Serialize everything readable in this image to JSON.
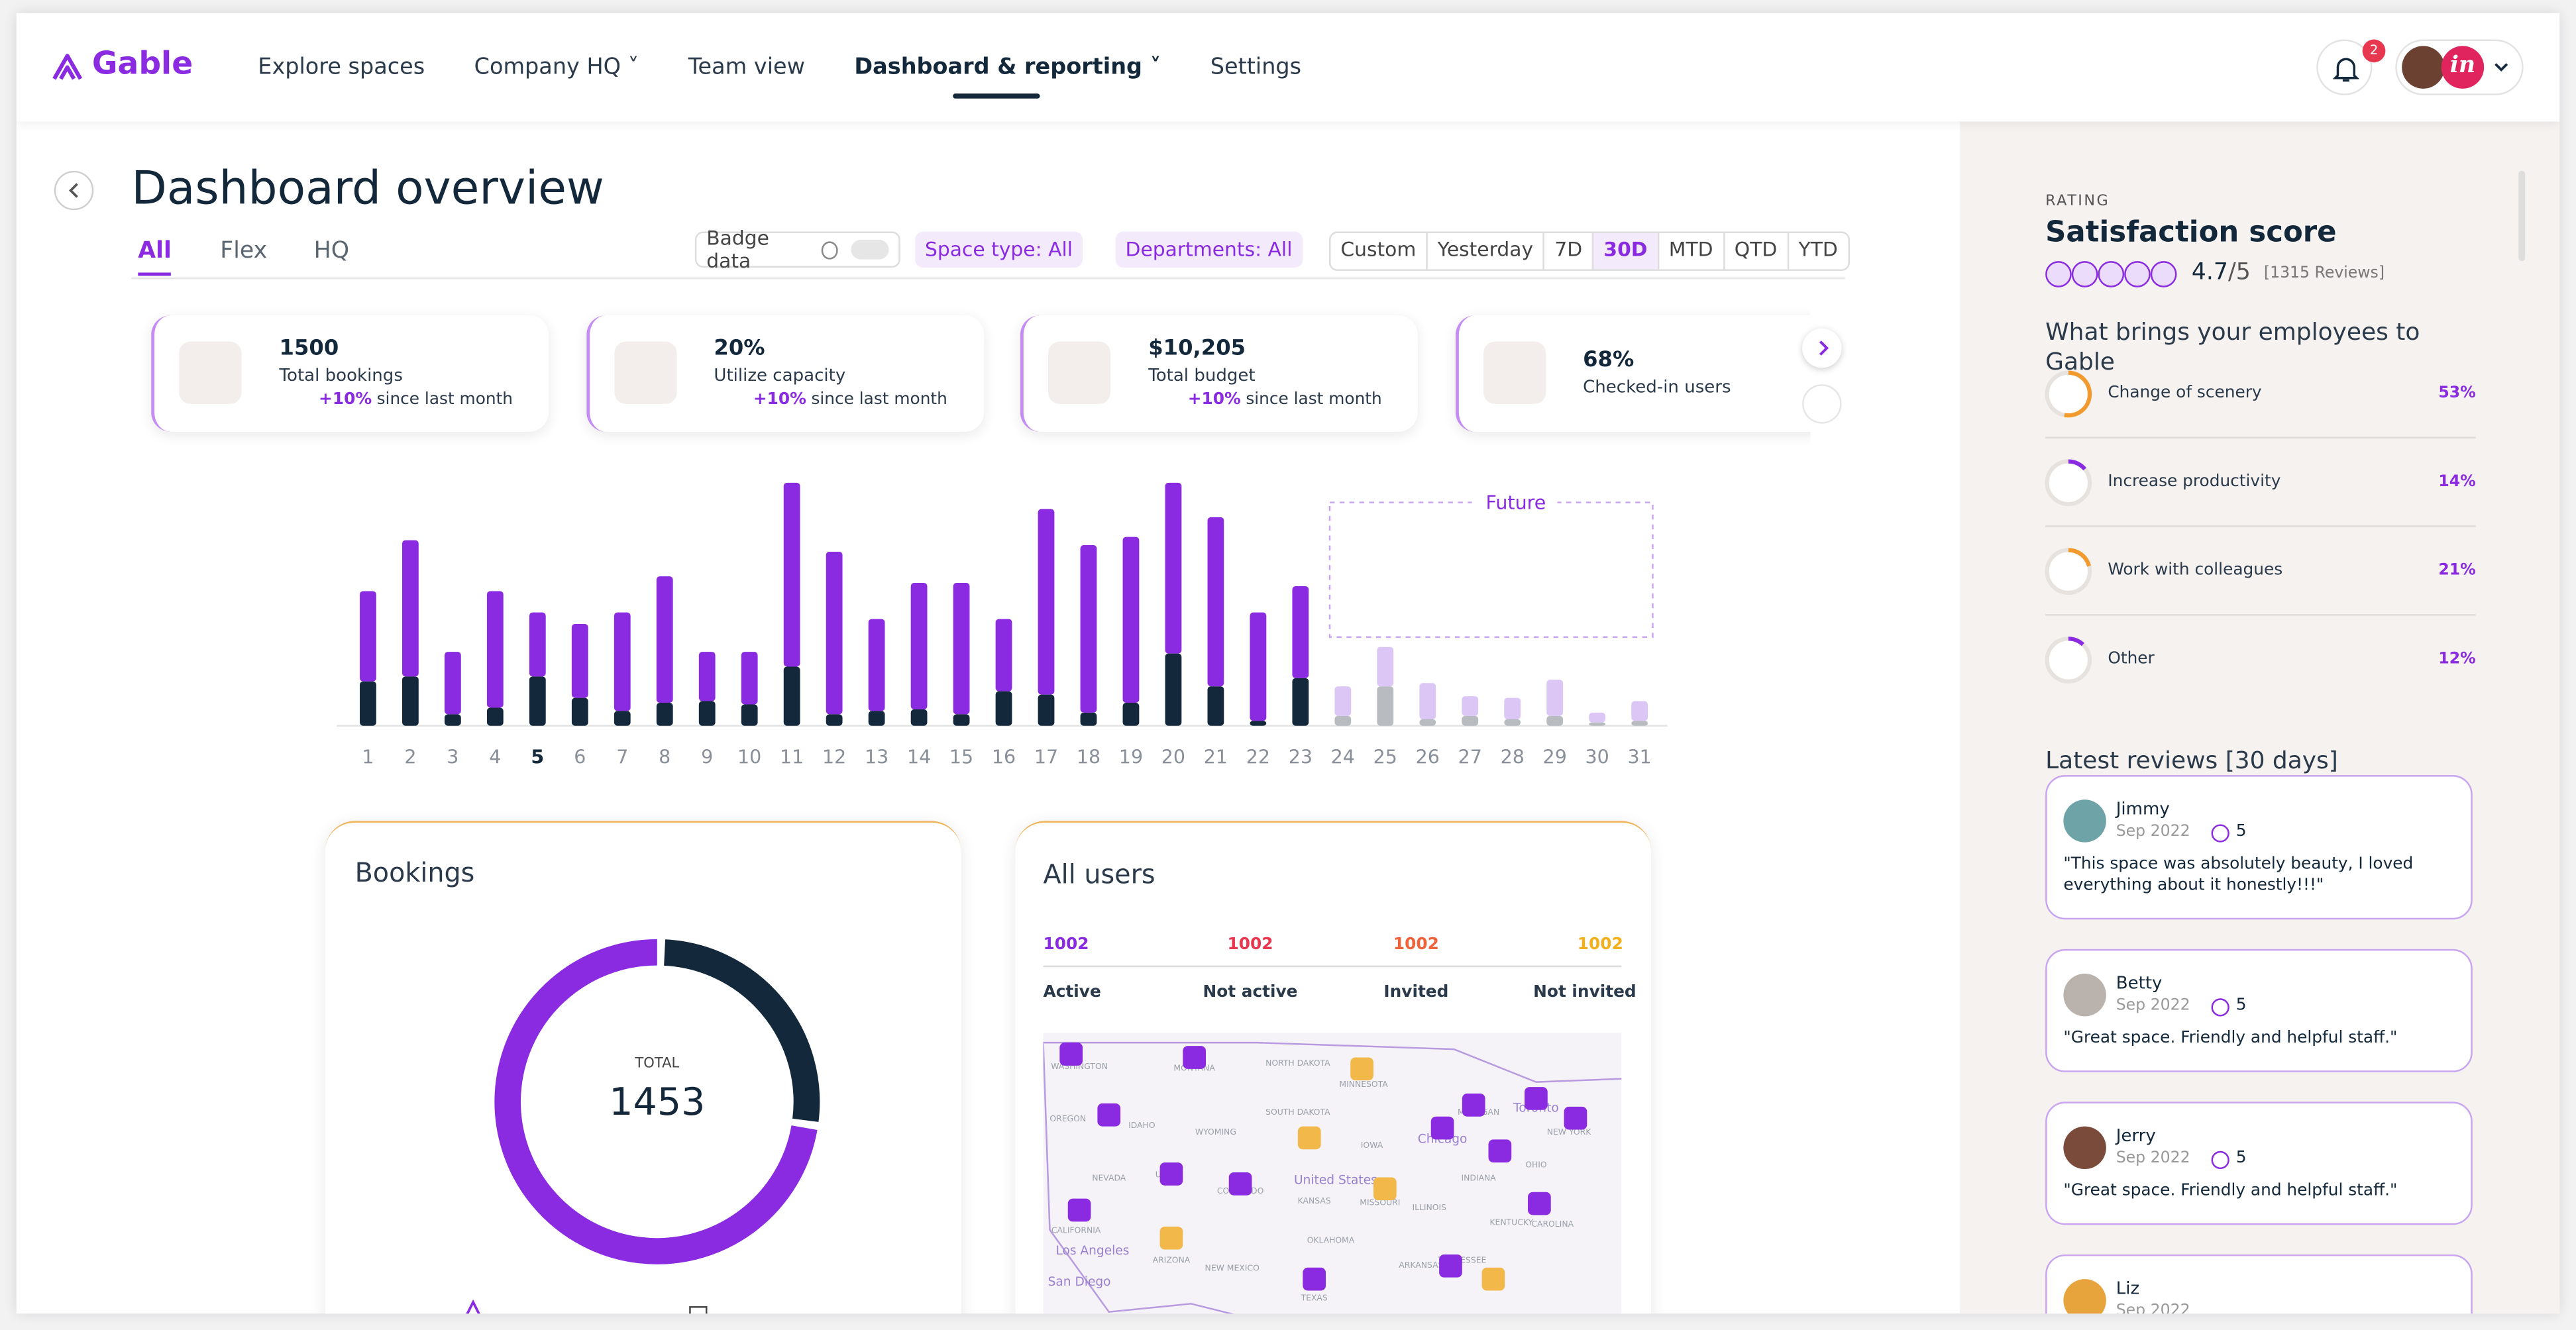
{
  "header": {
    "logo": "Gable",
    "nav": [
      "Explore spaces",
      "Company HQ",
      "Team view",
      "Dashboard & reporting",
      "Settings"
    ],
    "dropdown_nav": [
      1,
      3
    ],
    "active_nav": 3,
    "notifications": "2"
  },
  "page": {
    "title": "Dashboard overview",
    "tabs": [
      "All",
      "Flex",
      "HQ"
    ],
    "active_tab": 0,
    "filters": {
      "badge": "Badge data",
      "space_type": "Space type: All",
      "departments": "Departments: All",
      "ranges": [
        "Custom",
        "Yesterday",
        "7D",
        "30D",
        "MTD",
        "QTD",
        "YTD"
      ],
      "active_range": 3
    }
  },
  "kpis": [
    {
      "value": "1500",
      "label": "Total bookings",
      "change": "+10%",
      "note": "since last month"
    },
    {
      "value": "20%",
      "label": "Utilize capacity",
      "change": "+10%",
      "note": "since last month"
    },
    {
      "value": "$10,205",
      "label": "Total budget",
      "change": "+10%",
      "note": "since last month"
    },
    {
      "value": "68%",
      "label": "Checked-in users"
    }
  ],
  "chart_data": [
    {
      "type": "bar",
      "stacked": true,
      "annotation": "Future",
      "highlight_index": 4,
      "categories": [
        "1",
        "2",
        "3",
        "4",
        "5",
        "6",
        "7",
        "8",
        "9",
        "10",
        "11",
        "12",
        "13",
        "14",
        "15",
        "16",
        "17",
        "18",
        "19",
        "20",
        "21",
        "22",
        "23",
        "24",
        "25",
        "26",
        "27",
        "28",
        "29",
        "30",
        "31"
      ],
      "series": [
        {
          "color": "#13283a",
          "values": [
            27,
            30,
            7,
            11,
            30,
            17,
            9,
            14,
            15,
            13,
            36,
            7,
            9,
            10,
            7,
            21,
            19,
            8,
            14,
            44,
            24,
            3,
            29,
            null,
            null,
            null,
            null,
            null,
            null,
            null,
            null
          ]
        },
        {
          "color": "#8a2be2",
          "values": [
            55,
            83,
            38,
            71,
            39,
            45,
            60,
            77,
            30,
            32,
            112,
            99,
            56,
            77,
            80,
            44,
            113,
            102,
            101,
            104,
            103,
            66,
            56,
            null,
            null,
            null,
            null,
            null,
            null,
            null,
            null
          ]
        },
        {
          "color": "#b8bbc0",
          "values": [
            null,
            null,
            null,
            null,
            null,
            null,
            null,
            null,
            null,
            null,
            null,
            null,
            null,
            null,
            null,
            null,
            null,
            null,
            null,
            null,
            null,
            null,
            null,
            6,
            24,
            4,
            6,
            4,
            6,
            2,
            3
          ]
        },
        {
          "color": "#dcc6f6",
          "values": [
            null,
            null,
            null,
            null,
            null,
            null,
            null,
            null,
            null,
            null,
            null,
            null,
            null,
            null,
            null,
            null,
            null,
            null,
            null,
            null,
            null,
            null,
            null,
            18,
            24,
            22,
            12,
            13,
            22,
            6,
            12
          ]
        }
      ]
    },
    {
      "type": "pie",
      "donut": true,
      "title": "Bookings",
      "center_label": "TOTAL",
      "center_value": "1453",
      "values": [
        392,
        1061
      ],
      "colors": [
        "#13283a",
        "#8a2be2"
      ]
    }
  ],
  "users": {
    "title": "All users",
    "stats": [
      {
        "value": "1002",
        "label": "Active",
        "color": "#8a2be2"
      },
      {
        "value": "1002",
        "label": "Not active",
        "color": "#e8384f"
      },
      {
        "value": "1002",
        "label": "Invited",
        "color": "#f0633a"
      },
      {
        "value": "1002",
        "label": "Not invited",
        "color": "#f2b01e"
      }
    ],
    "map_labels": [
      "WASHINGTON",
      "MONTANA",
      "NORTH DAKOTA",
      "MINNESOTA",
      "OREGON",
      "IDAHO",
      "WYOMING",
      "SOUTH DAKOTA",
      "IOWA",
      "Chicago",
      "MICHIGAN",
      "Toronto",
      "NEW YORK",
      "OHIO",
      "INDIANA",
      "NEVADA",
      "UTAH",
      "COLORADO",
      "United States",
      "KANSAS",
      "MISSOURI",
      "ILLINOIS",
      "CALIFORNIA",
      "ARIZONA",
      "NEW MEXICO",
      "OKLAHOMA",
      "Los Angeles",
      "San Diego",
      "TEXAS",
      "ARKANSAS",
      "TENNESSEE",
      "CAROLINA",
      "KENTUCKY"
    ]
  },
  "panel": {
    "rating_label": "RATING",
    "title": "Satisfaction score",
    "score": "4.7",
    "out_of": "/5",
    "reviews_count": "[1315 Reviews]",
    "reasons_title": "What brings your employees to Gable",
    "reasons": [
      {
        "label": "Change of scenery",
        "value": 53,
        "value_label": "53%"
      },
      {
        "label": "Increase productivity",
        "value": 14,
        "value_label": "14%"
      },
      {
        "label": "Work with colleagues",
        "value": 21,
        "value_label": "21%"
      },
      {
        "label": "Other",
        "value": 12,
        "value_label": "12%"
      }
    ],
    "reviews_title": "Latest reviews [30 days]",
    "reviews": [
      {
        "name": "Jimmy",
        "date": "Sep 2022",
        "rating": "5",
        "text": "\"This space was absolutely beauty, I loved everything about it honestly!!!\""
      },
      {
        "name": "Betty",
        "date": "Sep 2022",
        "rating": "5",
        "text": "\"Great space. Friendly and helpful staff.\""
      },
      {
        "name": "Jerry",
        "date": "Sep 2022",
        "rating": "5",
        "text": "\"Great space. Friendly and helpful staff.\""
      },
      {
        "name": "Liz",
        "date": "Sep 2022"
      }
    ]
  }
}
